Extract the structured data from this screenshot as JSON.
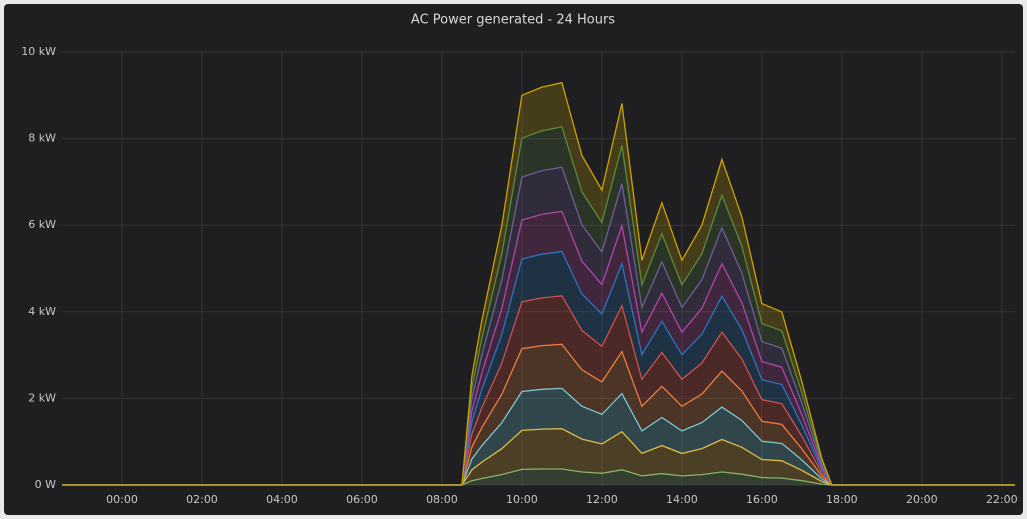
{
  "chart_data": {
    "type": "stacked-area",
    "title": "AC Power generated - 24 Hours",
    "x": [
      -1.5,
      8.5,
      8.75,
      9,
      9.5,
      10,
      10.5,
      11,
      11.5,
      12,
      12.5,
      13,
      13.5,
      14,
      14.5,
      15,
      15.5,
      16,
      16.5,
      17,
      17.5,
      17.75,
      22.33
    ],
    "series": [
      {
        "color": "#7eb26d",
        "values": [
          0,
          0,
          0.1,
          0.15,
          0.24,
          0.36,
          0.37,
          0.37,
          0.3,
          0.27,
          0.35,
          0.21,
          0.26,
          0.21,
          0.24,
          0.3,
          0.25,
          0.17,
          0.16,
          0.1,
          0.02,
          0,
          0
        ]
      },
      {
        "color": "#eab839",
        "values": [
          0,
          0,
          0.25,
          0.38,
          0.6,
          0.9,
          0.92,
          0.93,
          0.76,
          0.68,
          0.88,
          0.52,
          0.65,
          0.52,
          0.6,
          0.75,
          0.62,
          0.42,
          0.4,
          0.24,
          0.06,
          0,
          0
        ]
      },
      {
        "color": "#6ed0e0",
        "values": [
          0,
          0,
          0.25,
          0.38,
          0.6,
          0.9,
          0.92,
          0.93,
          0.76,
          0.68,
          0.88,
          0.52,
          0.65,
          0.52,
          0.6,
          0.75,
          0.62,
          0.42,
          0.4,
          0.24,
          0.06,
          0,
          0
        ]
      },
      {
        "color": "#ef843c",
        "values": [
          0,
          0,
          0.28,
          0.42,
          0.66,
          0.99,
          1.01,
          1.02,
          0.84,
          0.75,
          0.97,
          0.57,
          0.72,
          0.57,
          0.66,
          0.83,
          0.68,
          0.46,
          0.44,
          0.26,
          0.07,
          0,
          0
        ]
      },
      {
        "color": "#e24d42",
        "values": [
          0,
          0,
          0.3,
          0.46,
          0.72,
          1.08,
          1.1,
          1.12,
          0.91,
          0.82,
          1.06,
          0.62,
          0.78,
          0.62,
          0.72,
          0.9,
          0.74,
          0.5,
          0.48,
          0.29,
          0.07,
          0,
          0
        ]
      },
      {
        "color": "#1f78c1",
        "values": [
          0,
          0,
          0.28,
          0.42,
          0.66,
          0.99,
          1.01,
          1.02,
          0.84,
          0.75,
          0.97,
          0.57,
          0.72,
          0.57,
          0.66,
          0.83,
          0.68,
          0.46,
          0.44,
          0.26,
          0.07,
          0,
          0
        ]
      },
      {
        "color": "#ba43a9",
        "values": [
          0,
          0,
          0.25,
          0.38,
          0.6,
          0.9,
          0.92,
          0.93,
          0.76,
          0.68,
          0.88,
          0.52,
          0.65,
          0.52,
          0.6,
          0.75,
          0.62,
          0.42,
          0.4,
          0.24,
          0.06,
          0,
          0
        ]
      },
      {
        "color": "#705da0",
        "values": [
          0,
          0,
          0.28,
          0.42,
          0.66,
          0.99,
          1.01,
          1.02,
          0.84,
          0.75,
          0.97,
          0.57,
          0.72,
          0.57,
          0.66,
          0.83,
          0.68,
          0.46,
          0.44,
          0.26,
          0.07,
          0,
          0
        ]
      },
      {
        "color": "#508642",
        "values": [
          0,
          0,
          0.25,
          0.38,
          0.6,
          0.9,
          0.92,
          0.93,
          0.76,
          0.68,
          0.88,
          0.52,
          0.65,
          0.52,
          0.6,
          0.75,
          0.62,
          0.42,
          0.4,
          0.24,
          0.06,
          0,
          0
        ]
      },
      {
        "color": "#cca300",
        "values": [
          0,
          0,
          0.28,
          0.42,
          0.66,
          0.99,
          1.01,
          1.02,
          0.84,
          0.75,
          0.97,
          0.57,
          0.72,
          0.57,
          0.66,
          0.83,
          0.68,
          0.46,
          0.44,
          0.26,
          0.07,
          0,
          0
        ]
      }
    ],
    "xlim": [
      -1.5,
      22.33
    ],
    "xticks": [
      {
        "value": 0,
        "label": "00:00"
      },
      {
        "value": 2,
        "label": "02:00"
      },
      {
        "value": 4,
        "label": "04:00"
      },
      {
        "value": 6,
        "label": "06:00"
      },
      {
        "value": 8,
        "label": "08:00"
      },
      {
        "value": 10,
        "label": "10:00"
      },
      {
        "value": 12,
        "label": "12:00"
      },
      {
        "value": 14,
        "label": "14:00"
      },
      {
        "value": 16,
        "label": "16:00"
      },
      {
        "value": 18,
        "label": "18:00"
      },
      {
        "value": 20,
        "label": "20:00"
      },
      {
        "value": 22,
        "label": "22:00"
      }
    ],
    "ylim": [
      0,
      10
    ],
    "yticks": [
      {
        "value": 0,
        "label": "0 W"
      },
      {
        "value": 2,
        "label": "2 kW"
      },
      {
        "value": 4,
        "label": "4 kW"
      },
      {
        "value": 6,
        "label": "6 kW"
      },
      {
        "value": 8,
        "label": "8 kW"
      },
      {
        "value": 10,
        "label": "10 kW"
      }
    ],
    "grid": true
  }
}
